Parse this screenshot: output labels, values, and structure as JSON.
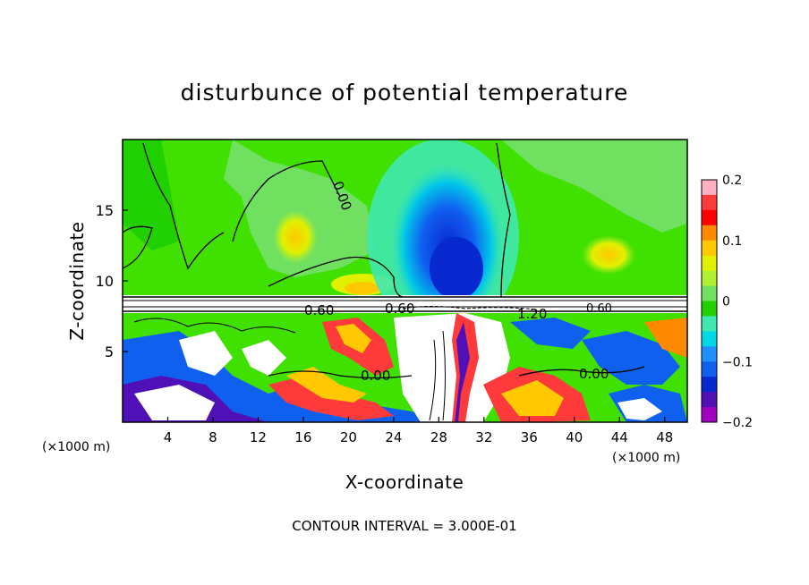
{
  "chart_data": {
    "type": "heatmap",
    "title": "disturbunce of potential temperature",
    "xlabel": "X-coordinate",
    "ylabel": "Z-coordinate",
    "x_unit_left": "(×1000 m)",
    "x_unit_right": "(×1000 m)",
    "xlim": [
      0,
      50
    ],
    "ylim": [
      0,
      20
    ],
    "x_ticks": [
      "4",
      "8",
      "12",
      "16",
      "20",
      "24",
      "28",
      "32",
      "36",
      "40",
      "44",
      "48"
    ],
    "y_ticks": [
      "5",
      "10",
      "15"
    ],
    "colorbar": {
      "range": [
        -0.2,
        0.2
      ],
      "tick_labels": [
        "0.2",
        "0.1",
        "0",
        "−0.1",
        "−0.2"
      ],
      "colors": [
        "#ffb0c0",
        "#ff3a3a",
        "#ff0000",
        "#ff8a00",
        "#ffc800",
        "#e0f000",
        "#b0f030",
        "#70e060",
        "#20d000",
        "#40e8b0",
        "#00d8e8",
        "#2090ff",
        "#1060f0",
        "#0828d0",
        "#5010b8",
        "#a000c0"
      ]
    },
    "contour_labels": [
      "0.00",
      "0.60",
      "0.60",
      "1.20",
      "0.00",
      "0.00",
      "0.60"
    ],
    "footer": "CONTOUR INTERVAL = 3.000E-01"
  }
}
